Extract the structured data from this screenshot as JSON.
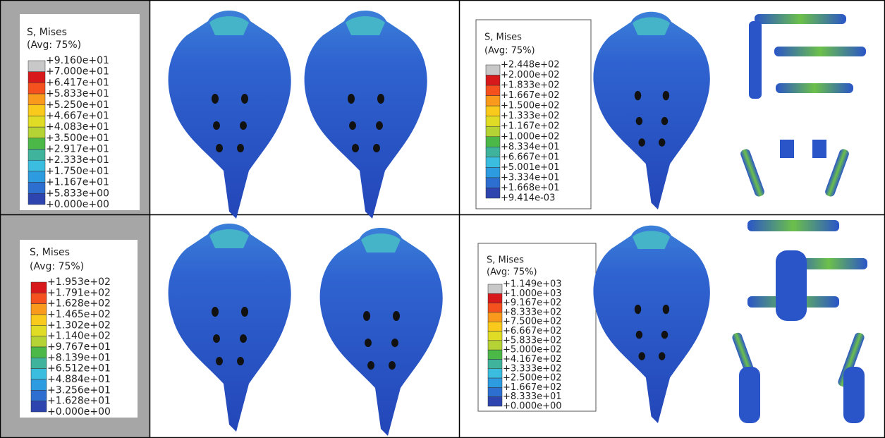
{
  "panels": [
    {
      "title": "S, Mises",
      "subtitle": "(Avg: 75%)",
      "labels": [
        "+9.160e+01",
        "+7.000e+01",
        "+6.417e+01",
        "+5.833e+01",
        "+5.250e+01",
        "+4.667e+01",
        "+4.083e+01",
        "+3.500e+01",
        "+2.917e+01",
        "+2.333e+01",
        "+1.750e+01",
        "+1.167e+01",
        "+5.833e+00",
        "+0.000e+00"
      ]
    },
    {
      "title": "S, Mises",
      "subtitle": "(Avg: 75%)",
      "labels": [
        "+1.953e+02",
        "+1.791e+02",
        "+1.628e+02",
        "+1.465e+02",
        "+1.302e+02",
        "+1.140e+02",
        "+9.767e+01",
        "+8.139e+01",
        "+6.512e+01",
        "+4.884e+01",
        "+3.256e+01",
        "+1.628e+01",
        "+0.000e+00"
      ]
    },
    {
      "title": "S, Mises",
      "subtitle": "(Avg: 75%)",
      "labels": [
        "+2.448e+02",
        "+2.000e+02",
        "+1.833e+02",
        "+1.667e+02",
        "+1.500e+02",
        "+1.333e+02",
        "+1.167e+02",
        "+1.000e+02",
        "+8.334e+01",
        "+6.667e+01",
        "+5.001e+01",
        "+3.334e+01",
        "+1.668e+01",
        "+9.414e-03"
      ]
    },
    {
      "title": "S, Mises",
      "subtitle": "(Avg: 75%)",
      "labels": [
        "+1.149e+03",
        "+1.000e+03",
        "+9.167e+02",
        "+8.333e+02",
        "+7.500e+02",
        "+6.667e+02",
        "+5.833e+02",
        "+5.000e+02",
        "+4.167e+02",
        "+3.333e+02",
        "+2.500e+02",
        "+1.667e+02",
        "+8.333e+01",
        "+0.000e+00"
      ]
    }
  ]
}
